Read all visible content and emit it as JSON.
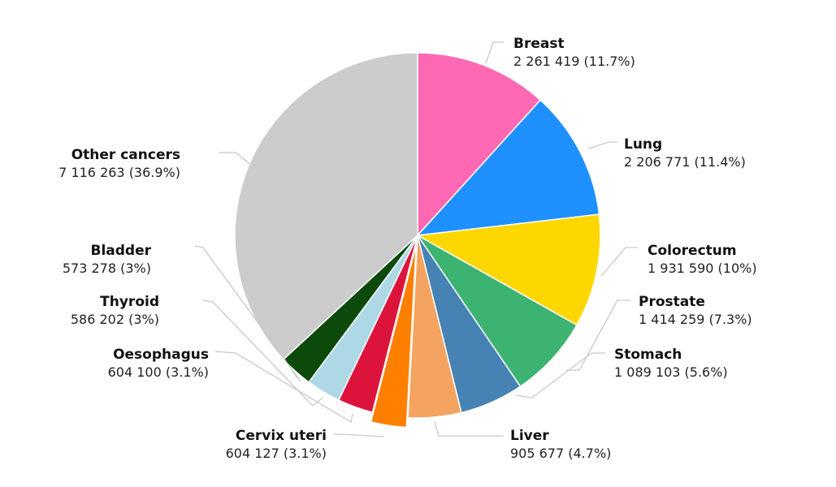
{
  "chart_data": {
    "type": "pie",
    "start_angle_deg": 0,
    "exploded": [
      "Cervix uteri"
    ],
    "slices": [
      {
        "name": "Breast",
        "value": 2261419,
        "value_label": "2 261 419",
        "pct_label": "11.7%",
        "color": "#ff69b4"
      },
      {
        "name": "Lung",
        "value": 2206771,
        "value_label": "2 206 771",
        "pct_label": "11.4%",
        "color": "#1e90ff"
      },
      {
        "name": "Colorectum",
        "value": 1931590,
        "value_label": "1 931 590",
        "pct_label": "10%",
        "color": "#ffd700"
      },
      {
        "name": "Prostate",
        "value": 1414259,
        "value_label": "1 414 259",
        "pct_label": "7.3%",
        "color": "#3cb371"
      },
      {
        "name": "Stomach",
        "value": 1089103,
        "value_label": "1 089 103",
        "pct_label": "5.6%",
        "color": "#4682b4"
      },
      {
        "name": "Liver",
        "value": 905677,
        "value_label": "905 677",
        "pct_label": "4.7%",
        "color": "#f4a460"
      },
      {
        "name": "Cervix uteri",
        "value": 604127,
        "value_label": "604 127",
        "pct_label": "3.1%",
        "color": "#ff7f00"
      },
      {
        "name": "Oesophagus",
        "value": 604100,
        "value_label": "604 100",
        "pct_label": "3.1%",
        "color": "#dc143c"
      },
      {
        "name": "Thyroid",
        "value": 586202,
        "value_label": "586 202",
        "pct_label": "3%",
        "color": "#add8e6"
      },
      {
        "name": "Bladder",
        "value": 573278,
        "value_label": "573 278",
        "pct_label": "3%",
        "color": "#0b4a0b"
      },
      {
        "name": "Other cancers",
        "value": 7116263,
        "value_label": "7 116 263",
        "pct_label": "36.9%",
        "color": "#cccccc"
      }
    ]
  }
}
